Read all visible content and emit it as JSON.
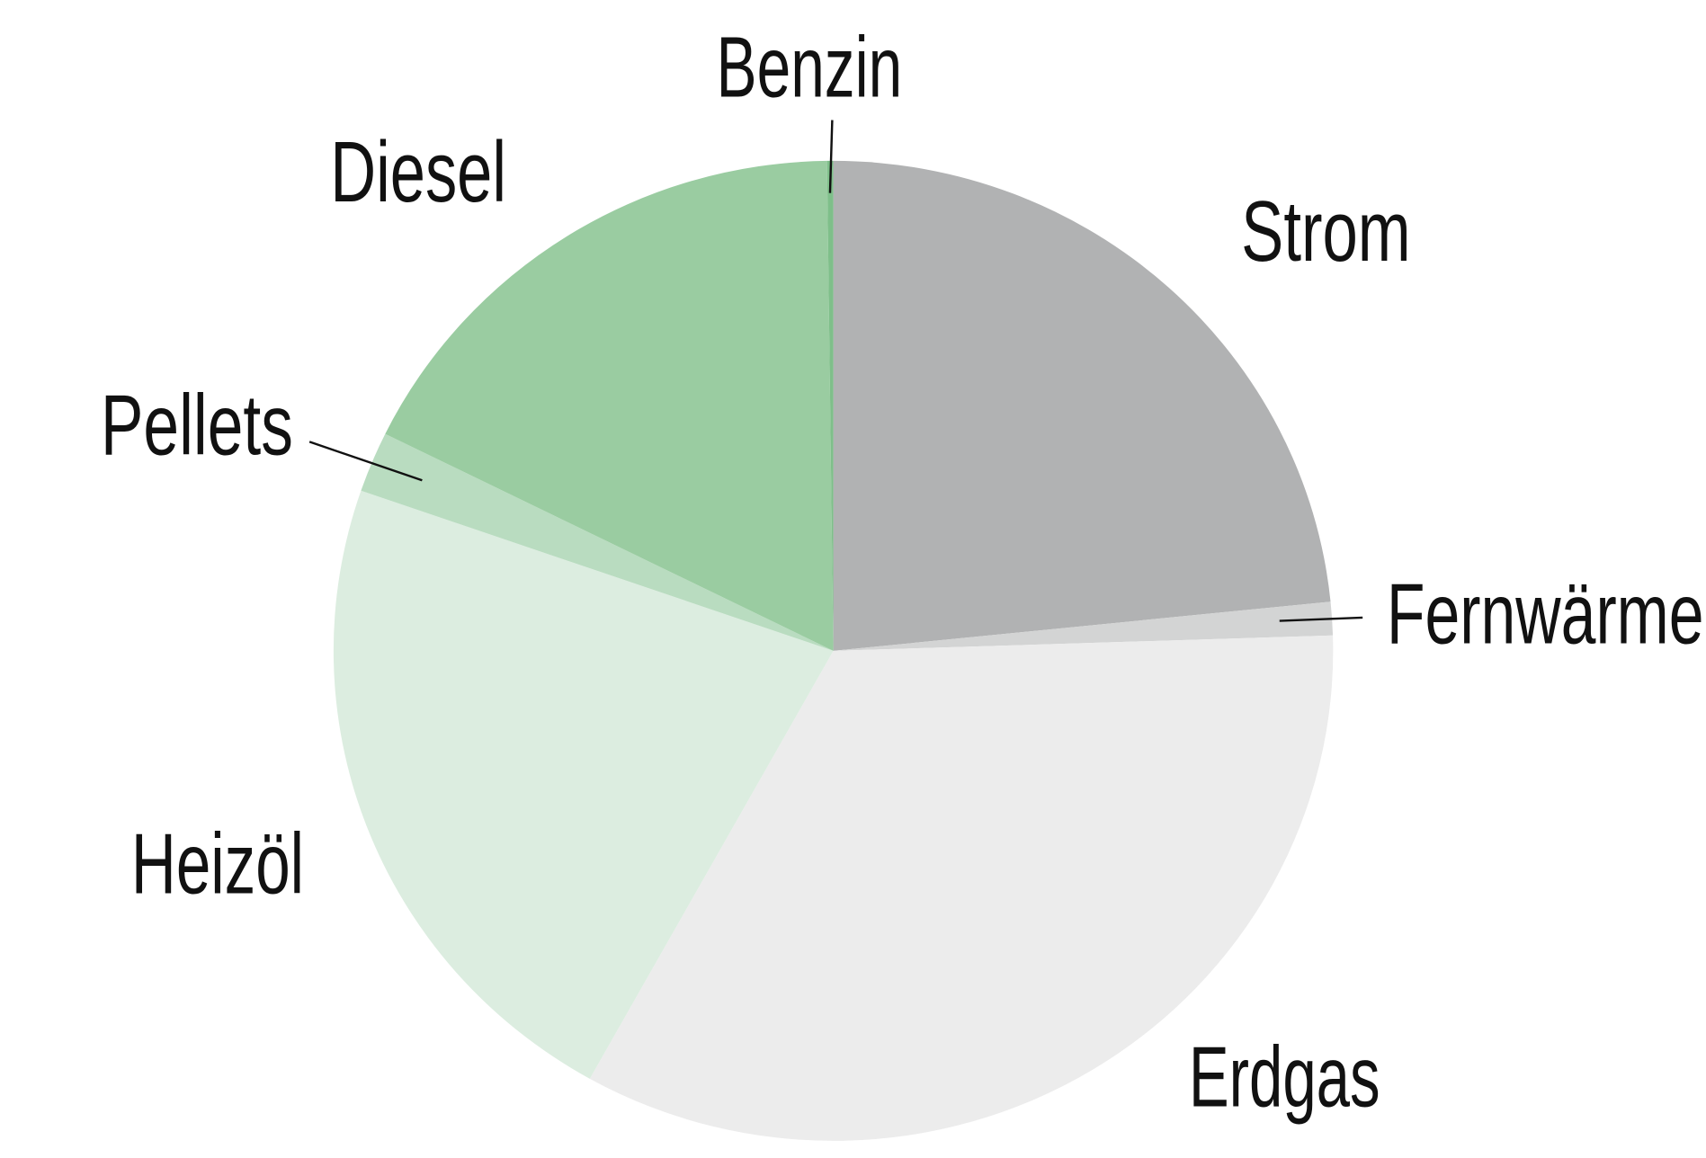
{
  "chart_data": {
    "type": "pie",
    "categories": [
      "Strom",
      "Fernwärme",
      "Erdgas",
      "Heizöl",
      "Pellets",
      "Diesel",
      "Benzin"
    ],
    "values": [
      23.4,
      1.1,
      33.6,
      22.2,
      2,
      17.5,
      0.2
    ],
    "colors": [
      "#b1b2b3",
      "#d3d4d4",
      "#ececec",
      "#dcede0",
      "#b9dcc0",
      "#9acca1",
      "#7fbf8a"
    ]
  }
}
